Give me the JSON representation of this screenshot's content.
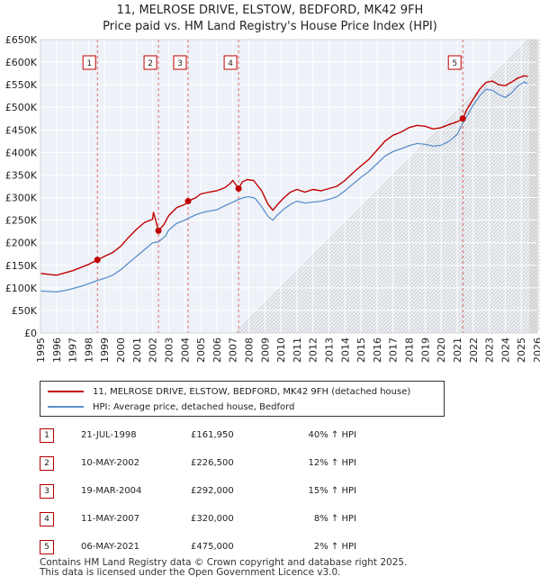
{
  "chart_data": {
    "type": "line",
    "title": "11, MELROSE DRIVE, ELSTOW, BEDFORD, MK42 9FH",
    "subtitle": "Price paid vs. HM Land Registry's House Price Index (HPI)",
    "xlabel": "",
    "ylabel": "",
    "xlim": [
      1995,
      2026
    ],
    "ylim": [
      0,
      650000
    ],
    "x_ticks": [
      "1995",
      "1996",
      "1997",
      "1998",
      "1999",
      "2000",
      "2001",
      "2002",
      "2003",
      "2004",
      "2005",
      "2006",
      "2007",
      "2008",
      "2009",
      "2010",
      "2011",
      "2012",
      "2013",
      "2014",
      "2015",
      "2016",
      "2017",
      "2018",
      "2019",
      "2020",
      "2021",
      "2022",
      "2023",
      "2024",
      "2025",
      "2026"
    ],
    "y_ticks": [
      {
        "value": 0,
        "label": "£0"
      },
      {
        "value": 50000,
        "label": "£50K"
      },
      {
        "value": 100000,
        "label": "£100K"
      },
      {
        "value": 150000,
        "label": "£150K"
      },
      {
        "value": 200000,
        "label": "£200K"
      },
      {
        "value": 250000,
        "label": "£250K"
      },
      {
        "value": 300000,
        "label": "£300K"
      },
      {
        "value": 350000,
        "label": "£350K"
      },
      {
        "value": 400000,
        "label": "£400K"
      },
      {
        "value": 450000,
        "label": "£450K"
      },
      {
        "value": 500000,
        "label": "£500K"
      },
      {
        "value": 550000,
        "label": "£550K"
      },
      {
        "value": 600000,
        "label": "£600K"
      },
      {
        "value": 650000,
        "label": "£650K"
      }
    ],
    "series": [
      {
        "name": "11, MELROSE DRIVE, ELSTOW, BEDFORD, MK42 9FH (detached house)",
        "color": "#c00000",
        "points": [
          [
            1995.0,
            132000
          ],
          [
            1995.5,
            130000
          ],
          [
            1996.0,
            128000
          ],
          [
            1996.5,
            133000
          ],
          [
            1997.0,
            138000
          ],
          [
            1997.5,
            145000
          ],
          [
            1998.0,
            152000
          ],
          [
            1998.55,
            161950
          ],
          [
            1999.0,
            170000
          ],
          [
            1999.5,
            178000
          ],
          [
            2000.0,
            192000
          ],
          [
            2000.5,
            212000
          ],
          [
            2001.0,
            230000
          ],
          [
            2001.5,
            245000
          ],
          [
            2002.0,
            252000
          ],
          [
            2002.05,
            268000
          ],
          [
            2002.36,
            226500
          ],
          [
            2002.7,
            240000
          ],
          [
            2003.0,
            260000
          ],
          [
            2003.5,
            278000
          ],
          [
            2004.0,
            285000
          ],
          [
            2004.21,
            292000
          ],
          [
            2004.7,
            300000
          ],
          [
            2005.0,
            308000
          ],
          [
            2005.5,
            312000
          ],
          [
            2006.0,
            315000
          ],
          [
            2006.5,
            322000
          ],
          [
            2006.8,
            330000
          ],
          [
            2007.0,
            338000
          ],
          [
            2007.36,
            320000
          ],
          [
            2007.6,
            335000
          ],
          [
            2007.9,
            340000
          ],
          [
            2008.3,
            338000
          ],
          [
            2008.8,
            315000
          ],
          [
            2009.2,
            285000
          ],
          [
            2009.5,
            272000
          ],
          [
            2009.8,
            285000
          ],
          [
            2010.2,
            300000
          ],
          [
            2010.6,
            312000
          ],
          [
            2011.0,
            318000
          ],
          [
            2011.5,
            312000
          ],
          [
            2012.0,
            318000
          ],
          [
            2012.5,
            315000
          ],
          [
            2013.0,
            320000
          ],
          [
            2013.5,
            325000
          ],
          [
            2014.0,
            338000
          ],
          [
            2014.5,
            355000
          ],
          [
            2015.0,
            370000
          ],
          [
            2015.5,
            385000
          ],
          [
            2016.0,
            405000
          ],
          [
            2016.5,
            425000
          ],
          [
            2017.0,
            438000
          ],
          [
            2017.5,
            445000
          ],
          [
            2018.0,
            455000
          ],
          [
            2018.5,
            460000
          ],
          [
            2019.0,
            458000
          ],
          [
            2019.5,
            452000
          ],
          [
            2020.0,
            455000
          ],
          [
            2020.5,
            462000
          ],
          [
            2021.0,
            468000
          ],
          [
            2021.35,
            475000
          ],
          [
            2021.6,
            495000
          ],
          [
            2022.0,
            518000
          ],
          [
            2022.4,
            540000
          ],
          [
            2022.8,
            555000
          ],
          [
            2023.2,
            558000
          ],
          [
            2023.6,
            550000
          ],
          [
            2024.0,
            548000
          ],
          [
            2024.4,
            556000
          ],
          [
            2024.8,
            565000
          ],
          [
            2025.2,
            570000
          ],
          [
            2025.4,
            568000
          ]
        ]
      },
      {
        "name": "HPI: Average price, detached house, Bedford",
        "color": "#5b8fcc",
        "points": [
          [
            1995.0,
            93000
          ],
          [
            1995.5,
            92000
          ],
          [
            1996.0,
            91000
          ],
          [
            1996.5,
            94000
          ],
          [
            1997.0,
            98000
          ],
          [
            1997.5,
            103000
          ],
          [
            1998.0,
            109000
          ],
          [
            1998.55,
            116000
          ],
          [
            1999.0,
            121000
          ],
          [
            1999.5,
            128000
          ],
          [
            2000.0,
            140000
          ],
          [
            2000.5,
            155000
          ],
          [
            2001.0,
            170000
          ],
          [
            2001.5,
            185000
          ],
          [
            2002.0,
            200000
          ],
          [
            2002.36,
            202000
          ],
          [
            2002.8,
            215000
          ],
          [
            2003.0,
            228000
          ],
          [
            2003.5,
            243000
          ],
          [
            2004.0,
            250000
          ],
          [
            2004.21,
            254000
          ],
          [
            2004.7,
            262000
          ],
          [
            2005.0,
            266000
          ],
          [
            2005.5,
            270000
          ],
          [
            2006.0,
            273000
          ],
          [
            2006.5,
            282000
          ],
          [
            2007.0,
            290000
          ],
          [
            2007.36,
            296000
          ],
          [
            2007.7,
            300000
          ],
          [
            2008.0,
            302000
          ],
          [
            2008.4,
            298000
          ],
          [
            2008.8,
            280000
          ],
          [
            2009.2,
            258000
          ],
          [
            2009.5,
            250000
          ],
          [
            2009.8,
            262000
          ],
          [
            2010.2,
            275000
          ],
          [
            2010.6,
            285000
          ],
          [
            2011.0,
            292000
          ],
          [
            2011.5,
            288000
          ],
          [
            2012.0,
            290000
          ],
          [
            2012.5,
            292000
          ],
          [
            2013.0,
            296000
          ],
          [
            2013.5,
            302000
          ],
          [
            2014.0,
            315000
          ],
          [
            2014.5,
            330000
          ],
          [
            2015.0,
            345000
          ],
          [
            2015.5,
            358000
          ],
          [
            2016.0,
            375000
          ],
          [
            2016.5,
            392000
          ],
          [
            2017.0,
            402000
          ],
          [
            2017.5,
            408000
          ],
          [
            2018.0,
            415000
          ],
          [
            2018.5,
            420000
          ],
          [
            2019.0,
            418000
          ],
          [
            2019.5,
            414000
          ],
          [
            2020.0,
            416000
          ],
          [
            2020.5,
            425000
          ],
          [
            2021.0,
            440000
          ],
          [
            2021.35,
            465000
          ],
          [
            2021.6,
            480000
          ],
          [
            2022.0,
            505000
          ],
          [
            2022.4,
            525000
          ],
          [
            2022.8,
            540000
          ],
          [
            2023.2,
            538000
          ],
          [
            2023.6,
            528000
          ],
          [
            2024.0,
            522000
          ],
          [
            2024.4,
            532000
          ],
          [
            2024.8,
            548000
          ],
          [
            2025.2,
            556000
          ],
          [
            2025.4,
            552000
          ]
        ]
      }
    ],
    "sales": [
      {
        "num": "1",
        "x": 1998.55,
        "price": 161950,
        "date": "21-JUL-1998",
        "price_label": "£161,950",
        "hpi": "40% ↑ HPI"
      },
      {
        "num": "2",
        "x": 2002.36,
        "price": 226500,
        "date": "10-MAY-2002",
        "price_label": "£226,500",
        "hpi": "12% ↑ HPI"
      },
      {
        "num": "3",
        "x": 2004.21,
        "price": 292000,
        "date": "19-MAR-2004",
        "price_label": "£292,000",
        "hpi": "15% ↑ HPI"
      },
      {
        "num": "4",
        "x": 2007.36,
        "price": 320000,
        "date": "11-MAY-2007",
        "price_label": "£320,000",
        "hpi": "8% ↑ HPI"
      },
      {
        "num": "5",
        "x": 2021.35,
        "price": 475000,
        "date": "06-MAY-2021",
        "price_label": "£475,000",
        "hpi": "2% ↑ HPI"
      }
    ],
    "projection_start": 2025.5,
    "grid": true
  },
  "legend": {
    "property_label": "11, MELROSE DRIVE, ELSTOW, BEDFORD, MK42 9FH (detached house)",
    "hpi_label": "HPI: Average price, detached house, Bedford"
  },
  "footer": {
    "line1": "Contains HM Land Registry data © Crown copyright and database right 2025.",
    "line2": "This data is licensed under the Open Government Licence v3.0."
  },
  "colors": {
    "property": "#c00000",
    "hpi": "#5b8fcc",
    "plot_bg": "#eef2f8",
    "grid": "#ffffff",
    "marker_border": "#c00000"
  }
}
